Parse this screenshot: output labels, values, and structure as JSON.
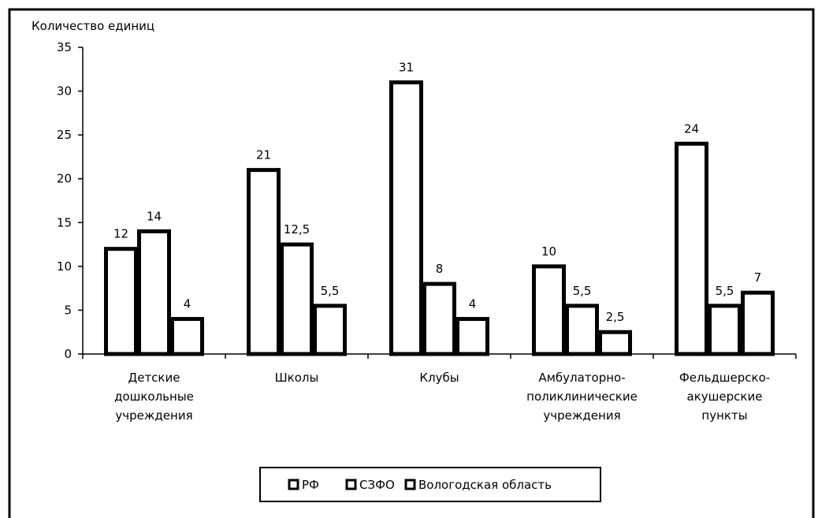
{
  "chart_data": {
    "type": "bar",
    "ylabel": "Количество единиц",
    "ylim": [
      0,
      35
    ],
    "yticks": [
      "0",
      "5",
      "10",
      "15",
      "20",
      "25",
      "30",
      "35"
    ],
    "category_lines": [
      [
        "Детские",
        "дошкольные",
        "учреждения"
      ],
      [
        "Школы"
      ],
      [
        "Клубы"
      ],
      [
        "Амбулаторно-",
        "поликлинические",
        "учреждения"
      ],
      [
        "Фельдшерско-",
        "акушерские",
        "пункты"
      ]
    ],
    "series": [
      {
        "name": "РФ",
        "values": [
          12,
          21,
          31,
          10,
          24
        ],
        "labels": [
          "12",
          "21",
          "31",
          "10",
          "24"
        ]
      },
      {
        "name": "СЗФО",
        "values": [
          14,
          12.5,
          8,
          5.5,
          5.5
        ],
        "labels": [
          "14",
          "12,5",
          "8",
          "5,5",
          "5,5"
        ]
      },
      {
        "name": "Вологодская область",
        "values": [
          4,
          5.5,
          4,
          2.5,
          7
        ],
        "labels": [
          "4",
          "5,5",
          "4",
          "2,5",
          "7"
        ]
      }
    ],
    "legend_position": "bottom",
    "grid": false,
    "colors": {
      "bar_fill": "#ffffff",
      "bar_stroke": "#000000",
      "axis": "#000000"
    }
  }
}
